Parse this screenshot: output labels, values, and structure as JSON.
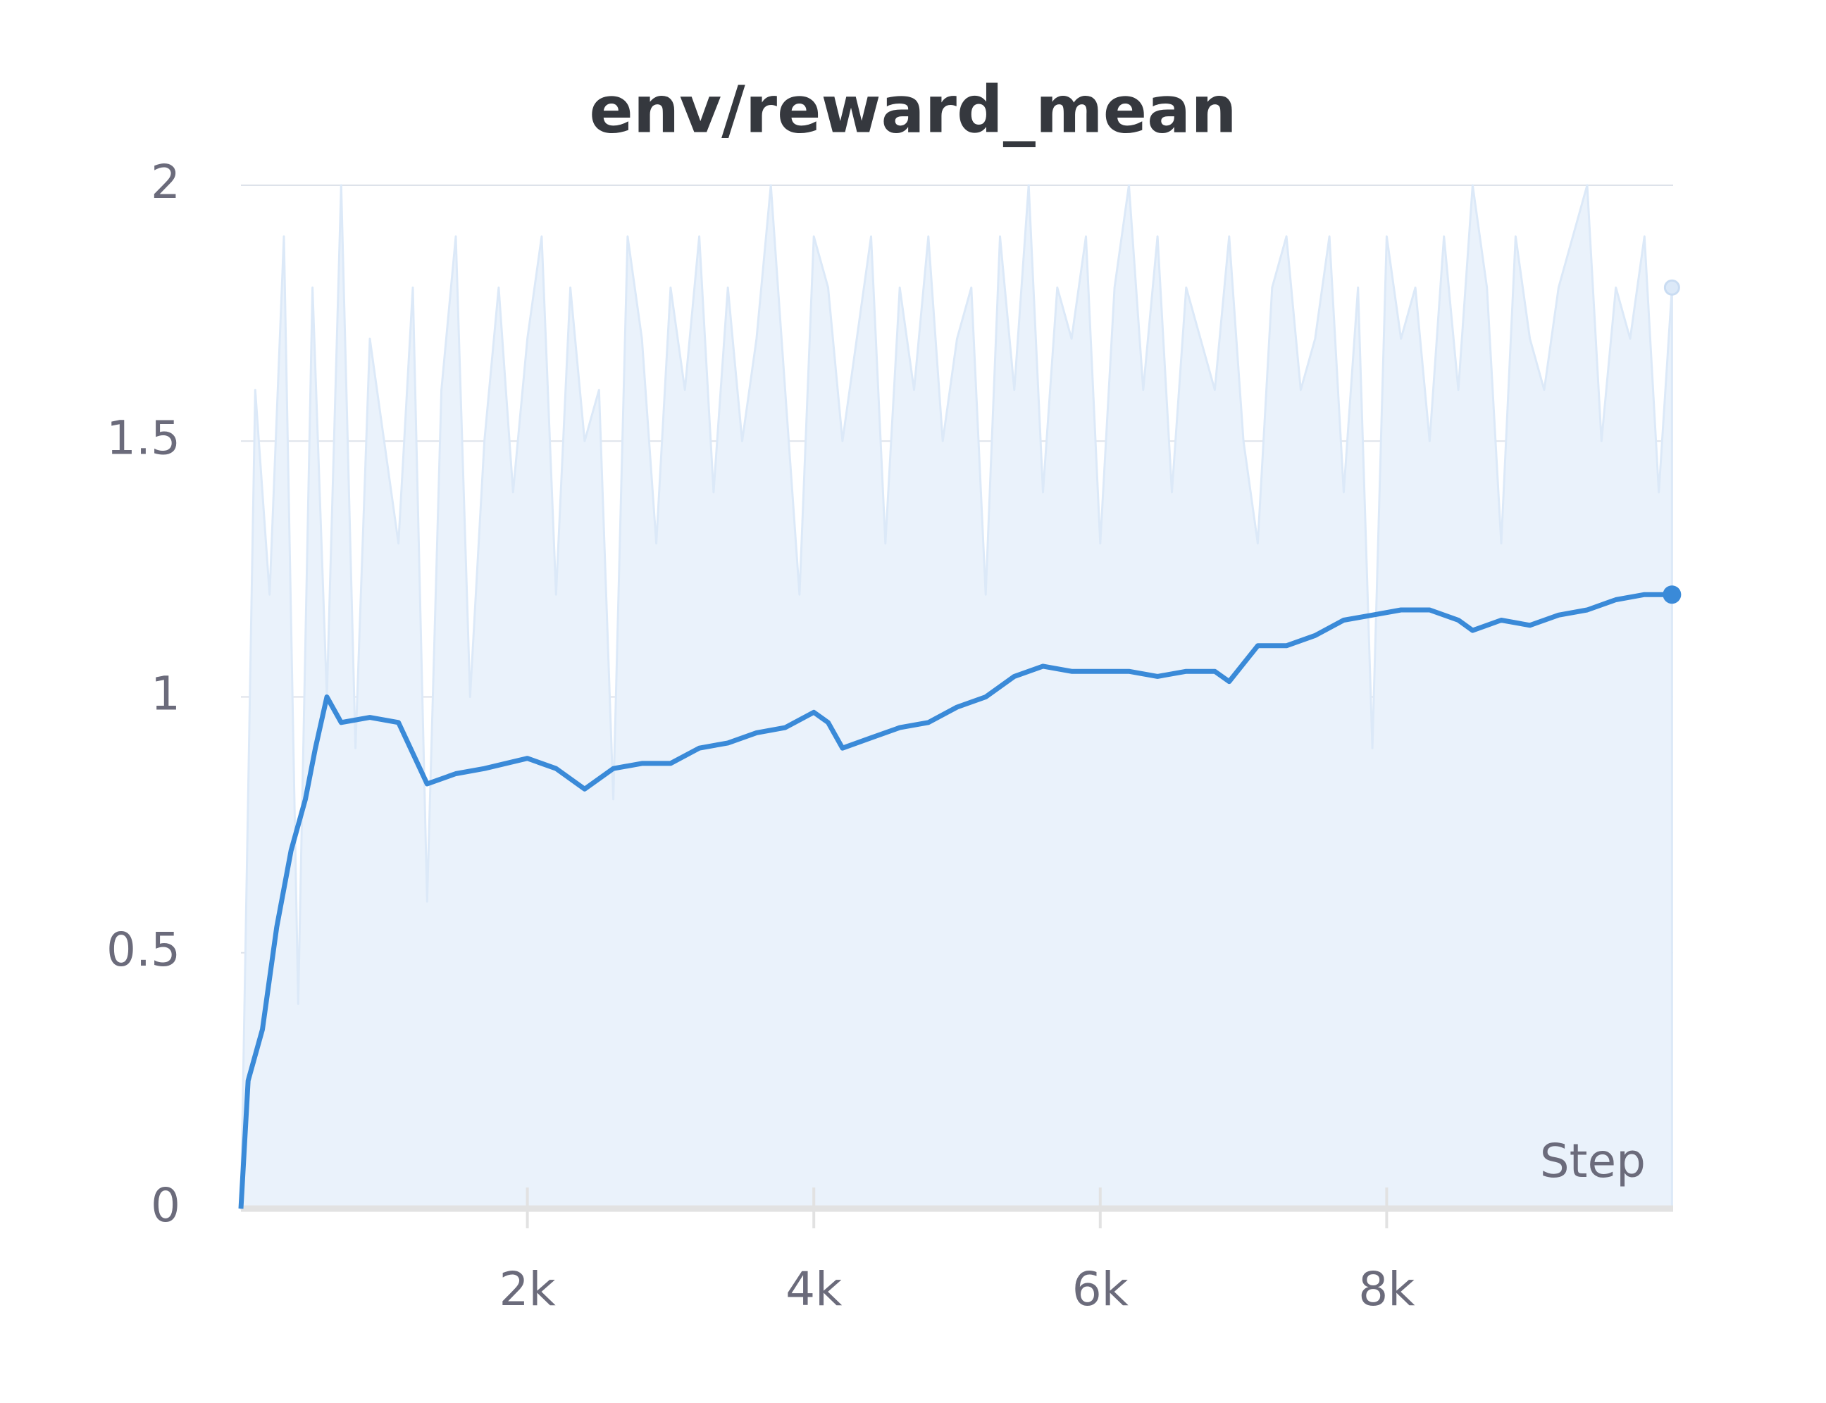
{
  "chart_data": {
    "type": "line",
    "title": "env/reward_mean",
    "x_label": "Step",
    "xlim": [
      0,
      10000
    ],
    "ylim": [
      0,
      2
    ],
    "xticks": [
      {
        "value": 2000,
        "label": "2k"
      },
      {
        "value": 4000,
        "label": "4k"
      },
      {
        "value": 6000,
        "label": "6k"
      },
      {
        "value": 8000,
        "label": "8k"
      }
    ],
    "yticks": [
      0,
      0.5,
      1,
      1.5,
      2
    ],
    "grid": true,
    "raw": {
      "color": "#dce9f8",
      "x": [
        0,
        100,
        200,
        300,
        400,
        500,
        600,
        700,
        800,
        900,
        1000,
        1100,
        1200,
        1300,
        1400,
        1500,
        1600,
        1700,
        1800,
        1900,
        2000,
        2100,
        2200,
        2300,
        2400,
        2500,
        2600,
        2700,
        2800,
        2900,
        3000,
        3100,
        3200,
        3300,
        3400,
        3500,
        3600,
        3700,
        3800,
        3900,
        4000,
        4100,
        4200,
        4300,
        4400,
        4500,
        4600,
        4700,
        4800,
        4900,
        5000,
        5100,
        5200,
        5300,
        5400,
        5500,
        5600,
        5700,
        5800,
        5900,
        6000,
        6100,
        6200,
        6300,
        6400,
        6500,
        6600,
        6700,
        6800,
        6900,
        7000,
        7100,
        7200,
        7300,
        7400,
        7500,
        7600,
        7700,
        7800,
        7900,
        8000,
        8100,
        8200,
        8300,
        8400,
        8500,
        8600,
        8700,
        8800,
        8900,
        9000,
        9100,
        9200,
        9300,
        9400,
        9500,
        9600,
        9700,
        9800,
        9900,
        9992
      ],
      "values": [
        0,
        1.6,
        1.2,
        1.9,
        0.4,
        1.8,
        1.0,
        2.0,
        0.9,
        1.7,
        1.5,
        1.3,
        1.8,
        0.6,
        1.6,
        1.9,
        1.0,
        1.5,
        1.8,
        1.4,
        1.7,
        1.9,
        1.2,
        1.8,
        1.5,
        1.6,
        0.8,
        1.9,
        1.7,
        1.3,
        1.8,
        1.6,
        1.9,
        1.4,
        1.8,
        1.5,
        1.7,
        2.0,
        1.6,
        1.2,
        1.9,
        1.8,
        1.5,
        1.7,
        1.9,
        1.3,
        1.8,
        1.6,
        1.9,
        1.5,
        1.7,
        1.8,
        1.2,
        1.9,
        1.6,
        2.0,
        1.4,
        1.8,
        1.7,
        1.9,
        1.3,
        1.8,
        2.0,
        1.6,
        1.9,
        1.4,
        1.8,
        1.7,
        1.6,
        1.9,
        1.5,
        1.3,
        1.8,
        1.9,
        1.6,
        1.7,
        1.9,
        1.4,
        1.8,
        0.9,
        1.9,
        1.7,
        1.8,
        1.5,
        1.9,
        1.6,
        2.0,
        1.8,
        1.3,
        1.9,
        1.7,
        1.6,
        1.8,
        1.9,
        2.0,
        1.5,
        1.8,
        1.7,
        1.9,
        1.4,
        1.8
      ]
    },
    "smoothed": {
      "color": "#3a8ad8",
      "x": [
        0,
        50,
        150,
        250,
        350,
        450,
        520,
        600,
        700,
        900,
        1100,
        1300,
        1500,
        1700,
        2000,
        2200,
        2400,
        2600,
        2800,
        3000,
        3200,
        3400,
        3600,
        3800,
        4000,
        4100,
        4200,
        4400,
        4600,
        4800,
        5000,
        5200,
        5400,
        5600,
        5800,
        6000,
        6200,
        6400,
        6600,
        6800,
        6900,
        7100,
        7300,
        7500,
        7700,
        7900,
        8100,
        8300,
        8500,
        8600,
        8800,
        9000,
        9200,
        9400,
        9600,
        9800,
        9992
      ],
      "values": [
        0,
        0.25,
        0.35,
        0.55,
        0.7,
        0.8,
        0.9,
        1.0,
        0.95,
        0.96,
        0.95,
        0.83,
        0.85,
        0.86,
        0.88,
        0.86,
        0.82,
        0.86,
        0.87,
        0.87,
        0.9,
        0.91,
        0.93,
        0.94,
        0.97,
        0.95,
        0.9,
        0.92,
        0.94,
        0.95,
        0.98,
        1.0,
        1.04,
        1.06,
        1.05,
        1.05,
        1.05,
        1.04,
        1.05,
        1.05,
        1.03,
        1.1,
        1.1,
        1.12,
        1.15,
        1.16,
        1.17,
        1.17,
        1.15,
        1.13,
        1.15,
        1.14,
        1.16,
        1.17,
        1.19,
        1.2,
        1.2
      ]
    }
  }
}
